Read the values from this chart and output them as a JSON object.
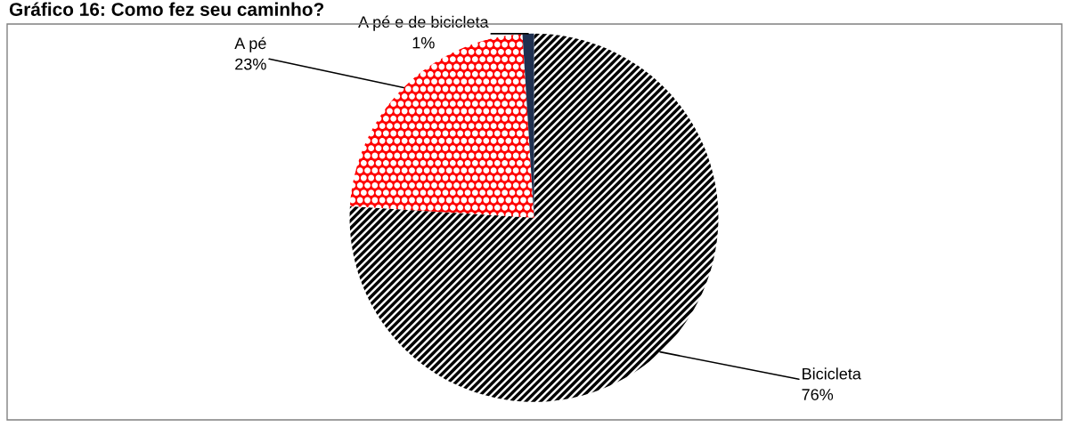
{
  "chart_data": {
    "type": "pie",
    "title": "Gráfico 16: Como fez seu caminho?",
    "categories": [
      "Bicicleta",
      "A pé",
      "A pé e de bicicleta"
    ],
    "values": [
      76,
      23,
      1
    ],
    "colors": [
      "#000000",
      "#ff0000",
      "#1f3050"
    ],
    "value_labels": [
      "76%",
      "23%",
      "1%"
    ],
    "legend": false
  }
}
